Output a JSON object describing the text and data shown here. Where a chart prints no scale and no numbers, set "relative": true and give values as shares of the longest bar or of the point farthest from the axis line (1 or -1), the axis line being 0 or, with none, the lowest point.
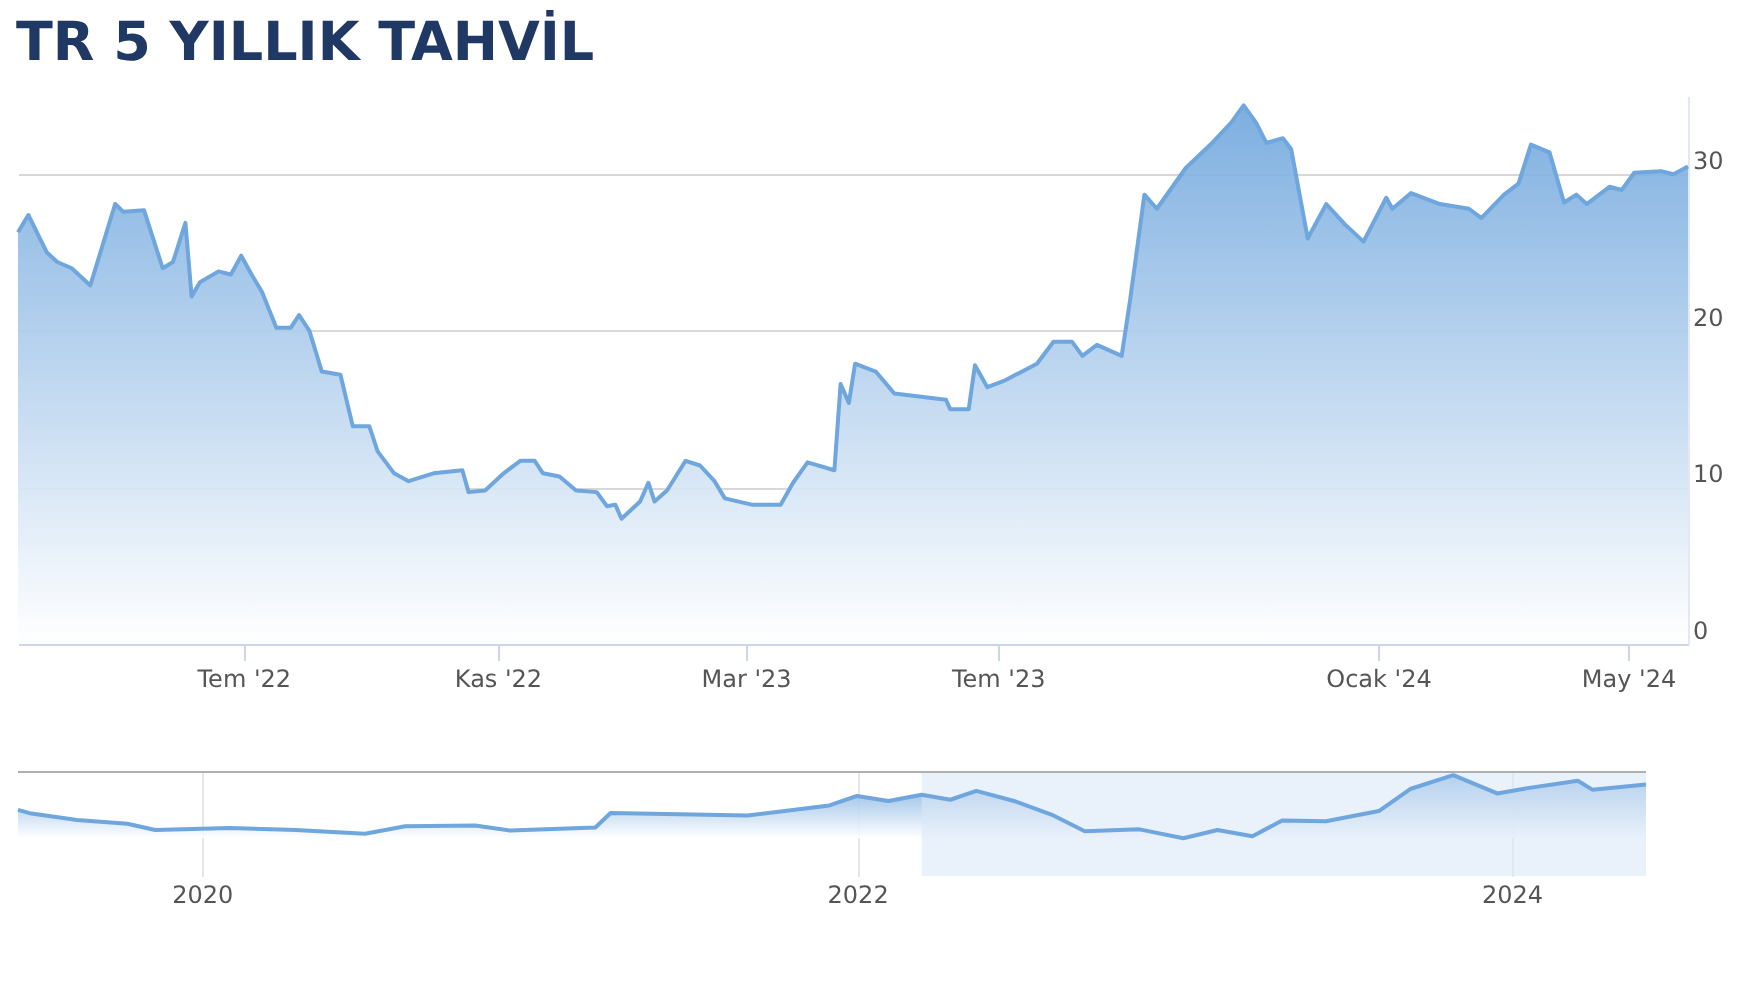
{
  "chart_data": [
    {
      "type": "area",
      "title": "TR 5 YILLIK TAHVİL",
      "color": "#6fa6dd",
      "grid": "y",
      "x": [
        "2022-03-14",
        "2022-03-19",
        "2022-03-28",
        "2022-04-02",
        "2022-04-09",
        "2022-04-18",
        "2022-04-30",
        "2022-05-04",
        "2022-05-14",
        "2022-05-23",
        "2022-05-28",
        "2022-06-03",
        "2022-06-06",
        "2022-06-10",
        "2022-06-19",
        "2022-06-25",
        "2022-06-30",
        "2022-07-05",
        "2022-07-10",
        "2022-07-17",
        "2022-07-24",
        "2022-07-28",
        "2022-08-02",
        "2022-08-08",
        "2022-08-17",
        "2022-08-23",
        "2022-08-31",
        "2022-09-04",
        "2022-09-12",
        "2022-09-19",
        "2022-10-01",
        "2022-10-15",
        "2022-10-18",
        "2022-10-26",
        "2022-11-04",
        "2022-11-12",
        "2022-11-19",
        "2022-11-23",
        "2022-12-01",
        "2022-12-09",
        "2022-12-19",
        "2022-12-24",
        "2022-12-28",
        "2022-12-31",
        "2023-01-09",
        "2023-01-13",
        "2023-01-16",
        "2023-01-22",
        "2023-01-31",
        "2023-02-07",
        "2023-02-14",
        "2023-02-19",
        "2023-03-04",
        "2023-03-18",
        "2023-03-24",
        "2023-03-31",
        "2023-04-13",
        "2023-04-16",
        "2023-04-20",
        "2023-04-23",
        "2023-05-03",
        "2023-05-12",
        "2023-06-06",
        "2023-06-08",
        "2023-06-17",
        "2023-06-20",
        "2023-06-26",
        "2023-07-04",
        "2023-07-20",
        "2023-07-28",
        "2023-08-06",
        "2023-08-11",
        "2023-08-18",
        "2023-08-30",
        "2023-09-03",
        "2023-09-10",
        "2023-09-16",
        "2023-09-30",
        "2023-10-12",
        "2023-10-22",
        "2023-10-28",
        "2023-11-03",
        "2023-11-08",
        "2023-11-16",
        "2023-11-20",
        "2023-11-28",
        "2023-12-07",
        "2023-12-16",
        "2023-12-25",
        "2024-01-05",
        "2024-01-08",
        "2024-01-17",
        "2024-01-31",
        "2024-02-14",
        "2024-02-20",
        "2024-03-02",
        "2024-03-09",
        "2024-03-15",
        "2024-03-24",
        "2024-03-31",
        "2024-04-06",
        "2024-04-11",
        "2024-04-22",
        "2024-04-28",
        "2024-05-04",
        "2024-05-17",
        "2024-05-23",
        "2024-05-30"
      ],
      "values": [
        26.3,
        27.4,
        25.0,
        24.4,
        24.0,
        22.9,
        28.1,
        27.6,
        27.7,
        24.0,
        24.4,
        26.9,
        22.2,
        23.1,
        23.8,
        23.6,
        24.8,
        23.6,
        22.5,
        20.2,
        20.2,
        21.0,
        20.0,
        17.4,
        17.2,
        13.9,
        13.9,
        12.3,
        10.9,
        10.4,
        10.9,
        11.1,
        9.7,
        9.8,
        10.9,
        11.7,
        11.7,
        10.9,
        10.7,
        9.8,
        9.7,
        8.8,
        8.9,
        8.0,
        9.1,
        10.3,
        9.1,
        9.8,
        11.7,
        11.4,
        10.4,
        9.3,
        8.9,
        8.9,
        10.3,
        11.6,
        11.1,
        16.6,
        15.4,
        17.9,
        17.4,
        16.0,
        15.6,
        15.0,
        15.0,
        17.8,
        16.4,
        16.8,
        17.9,
        19.3,
        19.3,
        18.4,
        19.1,
        18.4,
        21.9,
        28.7,
        27.8,
        30.4,
        31.9,
        33.3,
        34.4,
        33.3,
        32.0,
        32.3,
        31.6,
        25.9,
        28.1,
        26.8,
        25.7,
        28.5,
        27.8,
        28.8,
        28.1,
        27.8,
        27.2,
        28.7,
        29.4,
        31.9,
        31.4,
        28.2,
        28.7,
        28.1,
        29.2,
        29.0,
        30.1,
        30.2,
        30.0,
        30.5
      ],
      "xlim": [
        "2022-03-14",
        "2024-05-30"
      ],
      "xticks": [
        {
          "value": "2022-07-01",
          "label": "Tem '22"
        },
        {
          "value": "2022-11-01",
          "label": "Kas '22"
        },
        {
          "value": "2023-03-01",
          "label": "Mar '23"
        },
        {
          "value": "2023-07-01",
          "label": "Tem '23"
        },
        {
          "value": "2024-01-01",
          "label": "Ocak '24"
        },
        {
          "value": "2024-05-01",
          "label": "May '24"
        }
      ],
      "ylim": [
        0,
        35
      ],
      "yticks": [
        0,
        10,
        20,
        30
      ]
    },
    {
      "type": "area",
      "relative": true,
      "color": "#6fa6dd",
      "grid": "x",
      "tick_labels": "x",
      "x": [
        "2019-06-10",
        "2019-06-25",
        "2019-08-15",
        "2019-10-10",
        "2019-11-10",
        "2020-02-01",
        "2020-04-15",
        "2020-07-01",
        "2020-08-15",
        "2020-11-01",
        "2020-12-10",
        "2021-03-15",
        "2021-04-01",
        "2021-09-01",
        "2021-12-01",
        "2022-01-01",
        "2022-02-05",
        "2022-03-14",
        "2022-04-15",
        "2022-05-14",
        "2022-06-25",
        "2022-08-08",
        "2022-09-12",
        "2022-11-12",
        "2022-12-31",
        "2023-02-07",
        "2023-03-18",
        "2023-04-20",
        "2023-06-08",
        "2023-08-06",
        "2023-09-10",
        "2023-10-28",
        "2023-12-16",
        "2024-01-17",
        "2024-03-15",
        "2024-03-31",
        "2024-05-30"
      ],
      "values": [
        0.45,
        0.39,
        0.29,
        0.23,
        0.13,
        0.16,
        0.13,
        0.07,
        0.19,
        0.2,
        0.12,
        0.17,
        0.4,
        0.36,
        0.52,
        0.67,
        0.59,
        0.69,
        0.61,
        0.75,
        0.59,
        0.36,
        0.11,
        0.14,
        0,
        0.13,
        0.03,
        0.28,
        0.27,
        0.43,
        0.78,
        1,
        0.71,
        0.79,
        0.91,
        0.77,
        0.85
      ],
      "xlim": [
        "2019-06-10",
        "2024-05-30"
      ],
      "xticks": [
        {
          "value": "2020-01-01",
          "label": "2020"
        },
        {
          "value": "2022-01-01",
          "label": "2022"
        },
        {
          "value": "2024-01-01",
          "label": "2024"
        }
      ],
      "bands": [
        {
          "axis": "x",
          "from": "2022-03-14",
          "to": "2024-05-30",
          "color": "#dbe8f7"
        }
      ]
    }
  ]
}
